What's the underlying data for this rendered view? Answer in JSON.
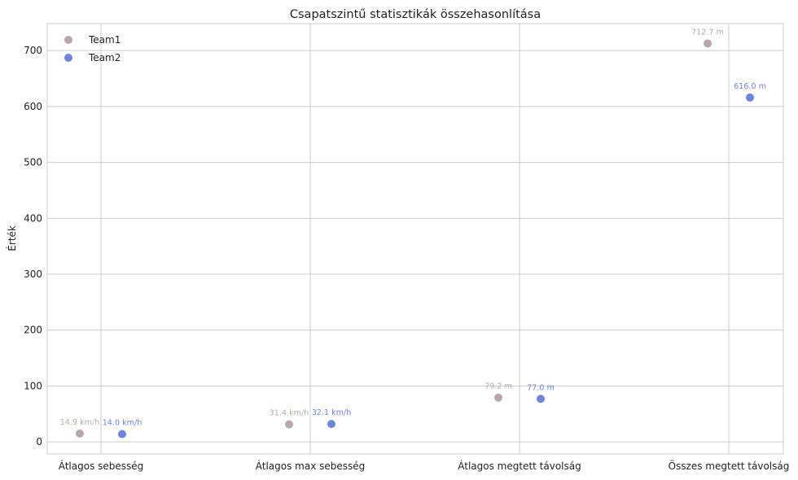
{
  "chart_data": {
    "type": "scatter",
    "title": "Csapatszintű statisztikák összehasonlítása",
    "xlabel": "",
    "ylabel": "Érték",
    "categories": [
      "Átlagos sebesség",
      "Átlagos max sebesség",
      "Átlagos megtett távolság",
      "Összes megtett távolság"
    ],
    "ylim": [
      -21.6,
      748.3
    ],
    "yticks": [
      0,
      100,
      200,
      300,
      400,
      500,
      600,
      700
    ],
    "grid": true,
    "legend_position": "top-left",
    "series": [
      {
        "name": "Team1",
        "color": "#b8a8a8",
        "values": [
          14.9,
          31.4,
          79.2,
          712.7
        ],
        "labels": [
          "14.9 km/h",
          "31.4 km/h",
          "79.2 m",
          "712.7 m"
        ]
      },
      {
        "name": "Team2",
        "color": "#6e85da",
        "values": [
          14.0,
          32.1,
          77.0,
          616.0
        ],
        "labels": [
          "14.0 km/h",
          "32.1 km/h",
          "77.0 m",
          "616.0 m"
        ]
      }
    ]
  }
}
